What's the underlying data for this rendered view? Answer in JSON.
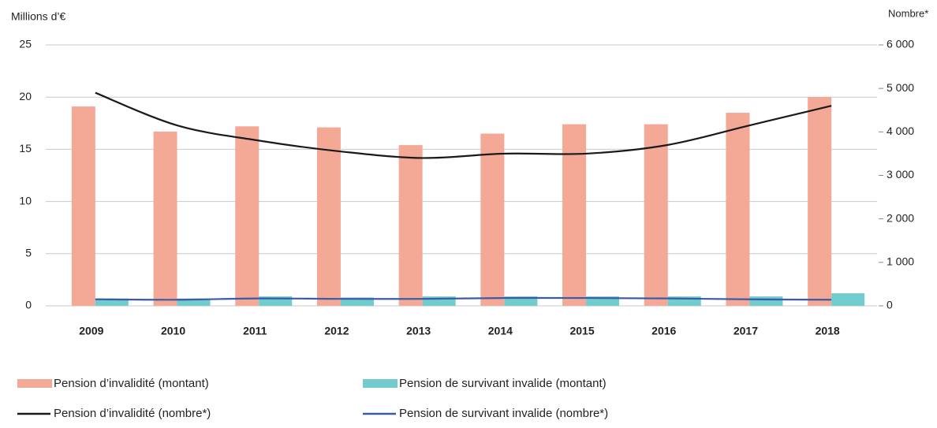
{
  "chart_data": {
    "type": "combo",
    "y_label": "Millions d’€",
    "y2_label": "Nombre*",
    "categories": [
      "2009",
      "2010",
      "2011",
      "2012",
      "2013",
      "2014",
      "2015",
      "2016",
      "2017",
      "2018"
    ],
    "ylim": [
      0,
      25
    ],
    "yticks": [
      0,
      5,
      10,
      15,
      20,
      25
    ],
    "y2lim": [
      0,
      6000
    ],
    "y2ticks": [
      0,
      {
        "value": 1000,
        "label": "1 000"
      },
      {
        "value": 2000,
        "label": "2 000"
      },
      {
        "value": 3000,
        "label": "3 000"
      },
      {
        "value": 4000,
        "label": "4 000"
      },
      {
        "value": 5000,
        "label": "5 000"
      },
      {
        "value": 6000,
        "label": "6 000"
      }
    ],
    "grid": true,
    "series": [
      {
        "name": "Pension d’invalidité (montant)",
        "type": "bar",
        "color": "#f4a896",
        "values": [
          19.1,
          16.7,
          17.2,
          17.1,
          15.4,
          16.5,
          17.4,
          17.4,
          18.5,
          20.0
        ]
      },
      {
        "name": "Pension de survivant invalide (montant)",
        "type": "bar",
        "color": "#72cbcd",
        "values": [
          0.7,
          0.7,
          0.9,
          0.8,
          0.9,
          0.9,
          0.9,
          0.9,
          0.9,
          1.2
        ]
      },
      {
        "name": "Pension d’invalidité (nombre*)",
        "type": "line",
        "axis": "y2",
        "color": "#1a1a1a",
        "values": [
          4900,
          4150,
          3800,
          3550,
          3400,
          3500,
          3500,
          3700,
          4150,
          4600
        ]
      },
      {
        "name": "Pension de survivant invalide (nombre*)",
        "type": "line",
        "axis": "y2",
        "color": "#3a5ba8",
        "values": [
          150,
          140,
          170,
          160,
          160,
          180,
          180,
          170,
          150,
          140
        ]
      }
    ]
  }
}
